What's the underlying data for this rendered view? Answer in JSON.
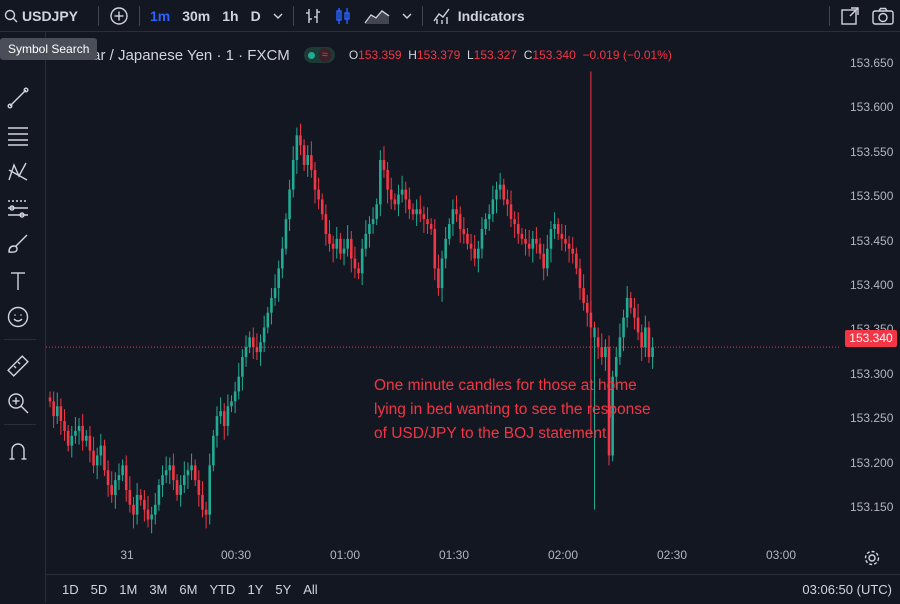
{
  "toolbar": {
    "symbol": "USDJPY",
    "intervals": [
      "1m",
      "30m",
      "1h",
      "D"
    ],
    "active_interval": "1m",
    "indicators_label": "Indicators"
  },
  "tooltip": "Symbol Search",
  "legend": {
    "title": ". Dollar / Japanese Yen · 1 · FXCM",
    "o_key": "O",
    "o_val": "153.359",
    "h_key": "H",
    "h_val": "153.379",
    "l_key": "L",
    "l_val": "153.327",
    "c_key": "C",
    "c_val": "153.340",
    "change": "−0.019 (−0.01%)"
  },
  "price_axis": [
    "153.650",
    "153.600",
    "153.550",
    "153.500",
    "153.450",
    "153.400",
    "153.350",
    "153.300",
    "153.250",
    "153.200",
    "153.150"
  ],
  "current_price": "153.340",
  "time_axis": [
    "31",
    "00:30",
    "01:00",
    "01:30",
    "02:00",
    "02:30",
    "03:00"
  ],
  "ranges": [
    "1D",
    "5D",
    "1M",
    "3M",
    "6M",
    "YTD",
    "1Y",
    "5Y",
    "All"
  ],
  "clock": "03:06:50 (UTC)",
  "annotation": {
    "line1": "One minute candles for those at home",
    "line2": "lying in bed wanting to see the response",
    "line3": "of USD/JPY to the BOJ statement."
  },
  "colors": {
    "up": "#22ab94",
    "down": "#f23645",
    "accent": "#2962ff"
  },
  "chart_data": {
    "type": "candlestick",
    "ylim": [
      153.13,
      153.66
    ],
    "x_start": "23:56",
    "interval": "1m",
    "series_closes": [
      153.285,
      153.27,
      153.28,
      153.265,
      153.255,
      153.24,
      153.25,
      153.255,
      153.26,
      153.245,
      153.25,
      153.235,
      153.22,
      153.23,
      153.24,
      153.215,
      153.2,
      153.19,
      153.205,
      153.21,
      153.22,
      153.195,
      153.18,
      153.17,
      153.19,
      153.185,
      153.175,
      153.165,
      153.17,
      153.18,
      153.2,
      153.21,
      153.215,
      153.22,
      153.205,
      153.19,
      153.2,
      153.21,
      153.215,
      153.22,
      153.205,
      153.19,
      153.175,
      153.17,
      153.22,
      153.25,
      153.27,
      153.275,
      153.26,
      153.28,
      153.285,
      153.295,
      153.31,
      153.33,
      153.34,
      153.35,
      153.34,
      153.335,
      153.345,
      153.36,
      153.375,
      153.39,
      153.4,
      153.42,
      153.44,
      153.47,
      153.5,
      153.53,
      153.555,
      153.545,
      153.525,
      153.535,
      153.52,
      153.5,
      153.49,
      153.475,
      153.455,
      153.445,
      153.44,
      153.45,
      153.435,
      153.44,
      153.45,
      153.43,
      153.42,
      153.415,
      153.44,
      153.455,
      153.465,
      153.47,
      153.485,
      153.53,
      153.52,
      153.5,
      153.49,
      153.485,
      153.495,
      153.5,
      153.49,
      153.48,
      153.475,
      153.48,
      153.475,
      153.47,
      153.465,
      153.46,
      153.42,
      153.4,
      153.43,
      153.45,
      153.465,
      153.48,
      153.475,
      153.46,
      153.455,
      153.445,
      153.44,
      153.43,
      153.44,
      153.46,
      153.47,
      153.475,
      153.49,
      153.5,
      153.505,
      153.49,
      153.485,
      153.47,
      153.465,
      153.455,
      153.45,
      153.445,
      153.44,
      153.45,
      153.445,
      153.435,
      153.42,
      153.44,
      153.46,
      153.465,
      153.455,
      153.45,
      153.445,
      153.44,
      153.435,
      153.42,
      153.4,
      153.385,
      153.375,
      153.36,
      153.35,
      153.34,
      153.33,
      153.34,
      153.23,
      153.31,
      153.33,
      153.35,
      153.37,
      153.39,
      153.38,
      153.37,
      153.355,
      153.34,
      153.36,
      153.33,
      153.34
    ]
  }
}
